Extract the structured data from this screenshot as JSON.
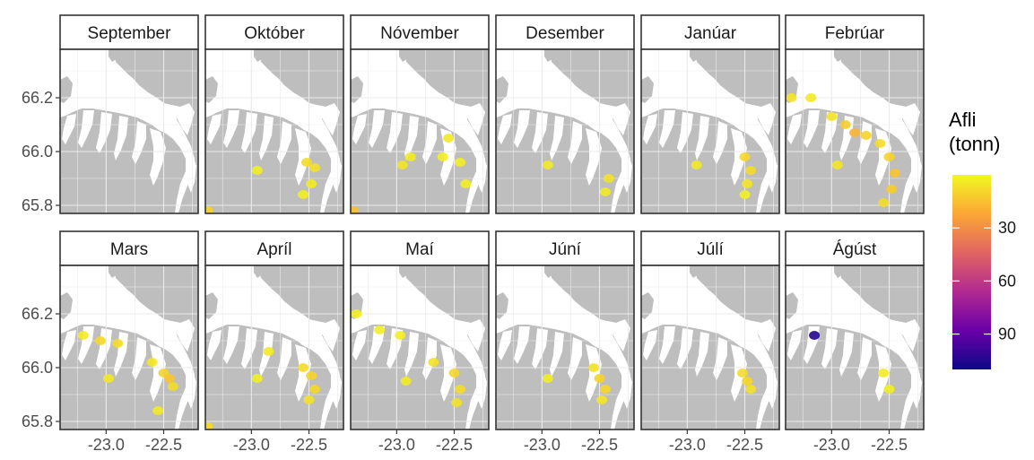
{
  "chart_data": {
    "type": "heatmap",
    "facets": [
      "September",
      "Október",
      "Nóvember",
      "Desember",
      "Janúar",
      "Febrúar",
      "Mars",
      "Apríl",
      "Maí",
      "Júní",
      "Júlí",
      "Ágúst"
    ],
    "x_ticks": [
      "-23.0",
      "-22.5"
    ],
    "y_ticks": [
      "66.2",
      "66.0",
      "65.8"
    ],
    "xlim": [
      -23.4,
      -22.2
    ],
    "ylim": [
      65.77,
      66.38
    ],
    "legend": {
      "title_lines": [
        "Afli",
        "(tonn)"
      ],
      "ticks": [
        "30",
        "60",
        "90"
      ],
      "range": [
        0,
        110
      ],
      "palette": [
        "#0d0887",
        "#6a00a8",
        "#b12a90",
        "#e16462",
        "#fca636",
        "#f0f921"
      ],
      "placement": "right"
    },
    "colors": {
      "land": "#bebebe",
      "sea": "#ffffff",
      "grid": "#ebebeb",
      "strip": "#ffffff"
    },
    "catch_cells": {
      "September": [],
      "Október": [
        {
          "lon": -22.52,
          "lat": 65.96,
          "value": 8
        },
        {
          "lon": -22.45,
          "lat": 65.94,
          "value": 6
        },
        {
          "lon": -22.48,
          "lat": 65.88,
          "value": 4
        },
        {
          "lon": -22.55,
          "lat": 65.84,
          "value": 3
        },
        {
          "lon": -22.95,
          "lat": 65.93,
          "value": 3
        },
        {
          "lon": -23.38,
          "lat": 65.78,
          "value": 10
        }
      ],
      "Nóvember": [
        {
          "lon": -22.55,
          "lat": 66.05,
          "value": 4
        },
        {
          "lon": -22.6,
          "lat": 65.98,
          "value": 3
        },
        {
          "lon": -22.45,
          "lat": 65.96,
          "value": 3
        },
        {
          "lon": -22.95,
          "lat": 65.95,
          "value": 5
        },
        {
          "lon": -22.88,
          "lat": 65.98,
          "value": 4
        },
        {
          "lon": -22.4,
          "lat": 65.88,
          "value": 3
        },
        {
          "lon": -23.38,
          "lat": 65.78,
          "value": 15
        }
      ],
      "Desember": [
        {
          "lon": -22.95,
          "lat": 65.95,
          "value": 4
        },
        {
          "lon": -22.42,
          "lat": 65.9,
          "value": 6
        },
        {
          "lon": -22.45,
          "lat": 65.85,
          "value": 4
        }
      ],
      "Janúar": [
        {
          "lon": -22.5,
          "lat": 65.98,
          "value": 9
        },
        {
          "lon": -22.45,
          "lat": 65.93,
          "value": 8
        },
        {
          "lon": -22.48,
          "lat": 65.88,
          "value": 5
        },
        {
          "lon": -22.92,
          "lat": 65.95,
          "value": 4
        },
        {
          "lon": -22.5,
          "lat": 65.84,
          "value": 3
        }
      ],
      "Febrúar": [
        {
          "lon": -23.35,
          "lat": 66.2,
          "value": 5
        },
        {
          "lon": -23.18,
          "lat": 66.2,
          "value": 4
        },
        {
          "lon": -23.0,
          "lat": 66.13,
          "value": 6
        },
        {
          "lon": -22.88,
          "lat": 66.1,
          "value": 12
        },
        {
          "lon": -22.8,
          "lat": 66.07,
          "value": 18
        },
        {
          "lon": -22.7,
          "lat": 66.06,
          "value": 10
        },
        {
          "lon": -22.58,
          "lat": 66.03,
          "value": 8
        },
        {
          "lon": -22.5,
          "lat": 65.98,
          "value": 10
        },
        {
          "lon": -22.45,
          "lat": 65.92,
          "value": 14
        },
        {
          "lon": -22.48,
          "lat": 65.86,
          "value": 12
        },
        {
          "lon": -22.55,
          "lat": 65.81,
          "value": 8
        },
        {
          "lon": -22.95,
          "lat": 65.95,
          "value": 5
        }
      ],
      "Mars": [
        {
          "lon": -23.2,
          "lat": 66.12,
          "value": 4
        },
        {
          "lon": -23.05,
          "lat": 66.1,
          "value": 9
        },
        {
          "lon": -22.9,
          "lat": 66.09,
          "value": 8
        },
        {
          "lon": -22.6,
          "lat": 66.02,
          "value": 5
        },
        {
          "lon": -22.5,
          "lat": 65.98,
          "value": 10
        },
        {
          "lon": -22.45,
          "lat": 65.96,
          "value": 14
        },
        {
          "lon": -22.42,
          "lat": 65.93,
          "value": 8
        },
        {
          "lon": -22.98,
          "lat": 65.96,
          "value": 5
        },
        {
          "lon": -22.55,
          "lat": 65.84,
          "value": 4
        }
      ],
      "Apríl": [
        {
          "lon": -22.85,
          "lat": 66.06,
          "value": 4
        },
        {
          "lon": -22.55,
          "lat": 66.0,
          "value": 8
        },
        {
          "lon": -22.48,
          "lat": 65.97,
          "value": 10
        },
        {
          "lon": -22.45,
          "lat": 65.92,
          "value": 9
        },
        {
          "lon": -22.5,
          "lat": 65.88,
          "value": 6
        },
        {
          "lon": -22.95,
          "lat": 65.96,
          "value": 3
        },
        {
          "lon": -23.38,
          "lat": 65.78,
          "value": 8
        }
      ],
      "Maí": [
        {
          "lon": -23.35,
          "lat": 66.2,
          "value": 3
        },
        {
          "lon": -23.15,
          "lat": 66.14,
          "value": 3
        },
        {
          "lon": -22.97,
          "lat": 66.12,
          "value": 3
        },
        {
          "lon": -22.68,
          "lat": 66.02,
          "value": 6
        },
        {
          "lon": -22.5,
          "lat": 65.98,
          "value": 9
        },
        {
          "lon": -22.45,
          "lat": 65.92,
          "value": 8
        },
        {
          "lon": -22.48,
          "lat": 65.87,
          "value": 6
        },
        {
          "lon": -22.92,
          "lat": 65.95,
          "value": 4
        }
      ],
      "Júní": [
        {
          "lon": -22.55,
          "lat": 66.0,
          "value": 6
        },
        {
          "lon": -22.5,
          "lat": 65.96,
          "value": 10
        },
        {
          "lon": -22.45,
          "lat": 65.92,
          "value": 9
        },
        {
          "lon": -22.48,
          "lat": 65.88,
          "value": 5
        },
        {
          "lon": -22.95,
          "lat": 65.96,
          "value": 3
        }
      ],
      "Júlí": [
        {
          "lon": -22.52,
          "lat": 65.98,
          "value": 8
        },
        {
          "lon": -22.48,
          "lat": 65.95,
          "value": 9
        },
        {
          "lon": -22.45,
          "lat": 65.92,
          "value": 6
        }
      ],
      "Ágúst": [
        {
          "lon": -23.15,
          "lat": 66.12,
          "value": 105
        },
        {
          "lon": -22.55,
          "lat": 65.98,
          "value": 4
        },
        {
          "lon": -22.5,
          "lat": 65.92,
          "value": 3
        }
      ]
    }
  }
}
